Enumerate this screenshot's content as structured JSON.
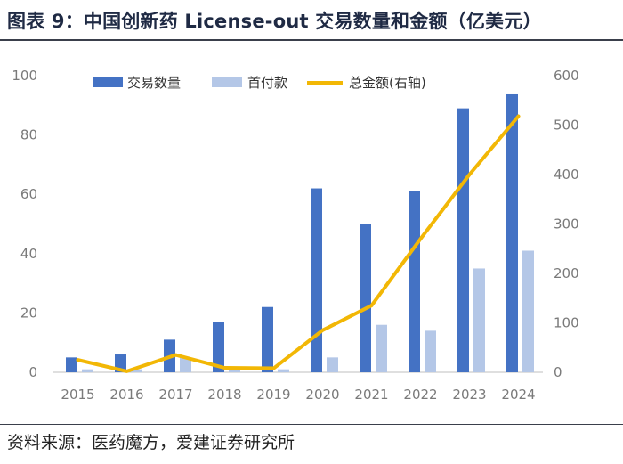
{
  "figure": {
    "title": "图表 9：中国创新药 License-out 交易数量和金额（亿美元）",
    "source": "资料来源：医药魔方，爱建证券研究所"
  },
  "colors": {
    "deal_count": "#4472c4",
    "upfront": "#b4c7e7",
    "total": "#f2b705",
    "axis": "#bfbfbf",
    "text": "#7a7a7a"
  },
  "chart_data": {
    "type": "bar",
    "title": "中国创新药 License-out 交易数量和金额（亿美元）",
    "categories": [
      "2015",
      "2016",
      "2017",
      "2018",
      "2019",
      "2020",
      "2021",
      "2022",
      "2023",
      "2024"
    ],
    "series": [
      {
        "name": "交易数量",
        "kind": "bar",
        "axis": "left",
        "values": [
          5,
          6,
          11,
          17,
          22,
          62,
          50,
          61,
          89,
          94
        ]
      },
      {
        "name": "首付款",
        "kind": "bar",
        "axis": "left",
        "values": [
          1,
          1,
          5,
          1,
          1,
          5,
          16,
          14,
          35,
          41
        ]
      },
      {
        "name": "总金额(右轴)",
        "kind": "line",
        "axis": "right",
        "values": [
          25,
          2,
          35,
          9,
          8,
          85,
          135,
          270,
          400,
          518
        ]
      }
    ],
    "yleft": {
      "ticks": [
        0,
        20,
        40,
        60,
        80,
        100
      ],
      "ylim": [
        0,
        100
      ]
    },
    "yright": {
      "ticks": [
        0,
        100,
        200,
        300,
        400,
        500,
        600
      ],
      "ylim": [
        0,
        600
      ]
    },
    "legend": {
      "position": "top-center",
      "labels": [
        "交易数量",
        "首付款",
        "总金额(右轴)"
      ]
    }
  }
}
